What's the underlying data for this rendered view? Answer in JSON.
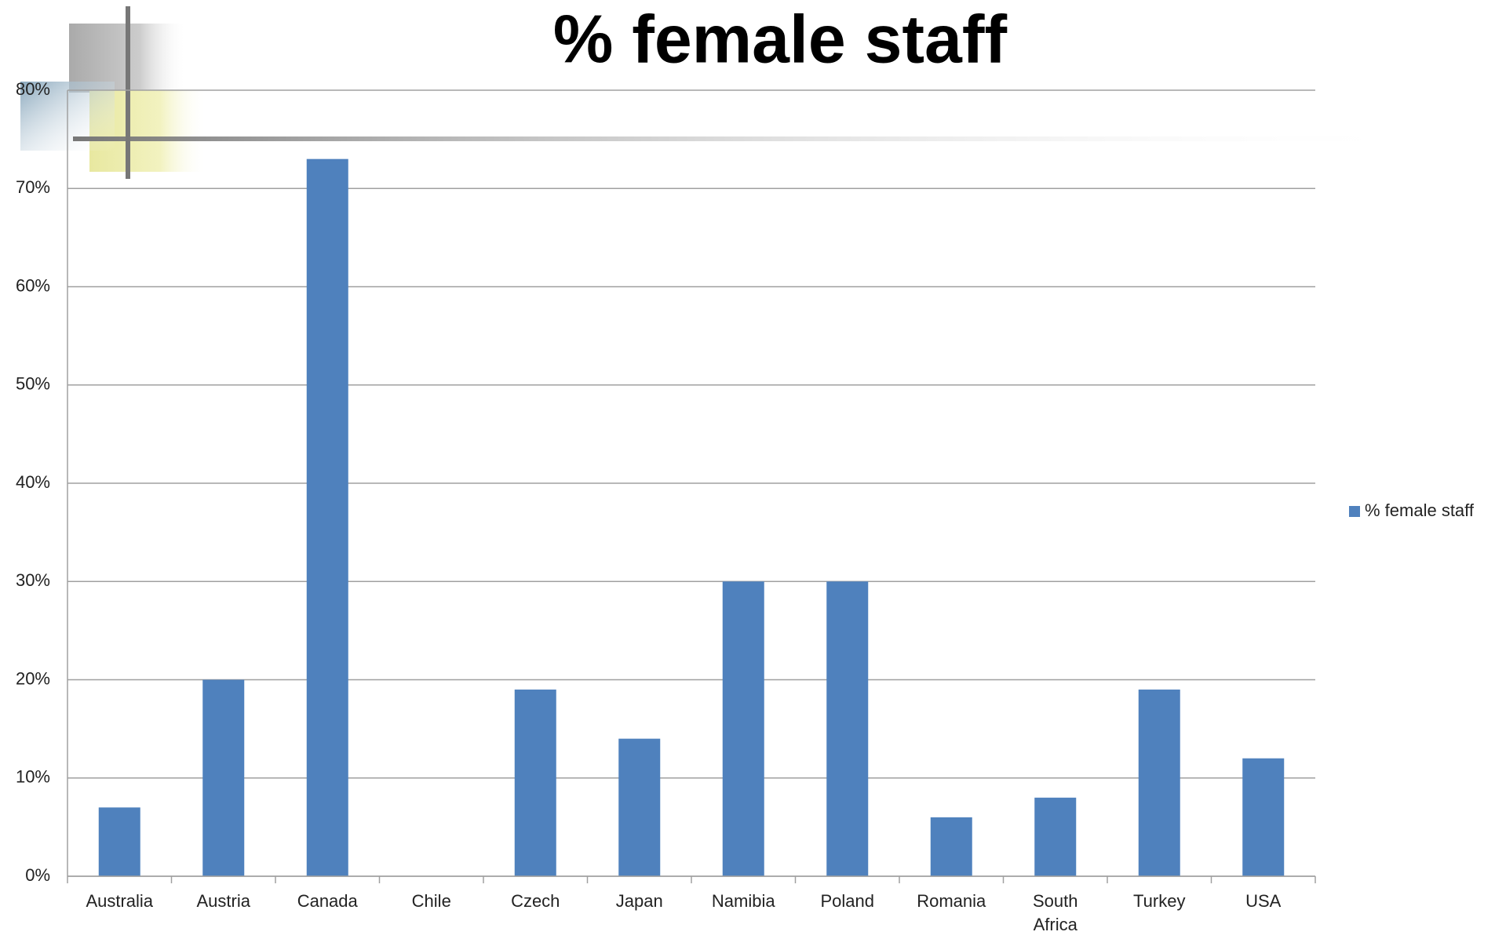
{
  "chart_data": {
    "type": "bar",
    "title": "% female staff",
    "categories": [
      "Australia",
      "Austria",
      "Canada",
      "Chile",
      "Czech",
      "Japan",
      "Namibia",
      "Poland",
      "Romania",
      "South Africa",
      "Turkey",
      "USA"
    ],
    "series": [
      {
        "name": "% female staff",
        "color": "#4f81bd",
        "values": [
          7,
          20,
          73,
          0,
          19,
          14,
          30,
          30,
          6,
          8,
          19,
          12
        ]
      }
    ],
    "ylim": [
      0,
      80
    ],
    "yticks": [
      {
        "value": 0,
        "label": "0%"
      },
      {
        "value": 10,
        "label": "10%"
      },
      {
        "value": 20,
        "label": "20%"
      },
      {
        "value": 30,
        "label": "30%"
      },
      {
        "value": 40,
        "label": "40%"
      },
      {
        "value": 50,
        "label": "50%"
      },
      {
        "value": 60,
        "label": "60%"
      },
      {
        "value": 70,
        "label": "70%"
      },
      {
        "value": 80,
        "label": "80%"
      }
    ],
    "grid": true,
    "legend": "right"
  }
}
